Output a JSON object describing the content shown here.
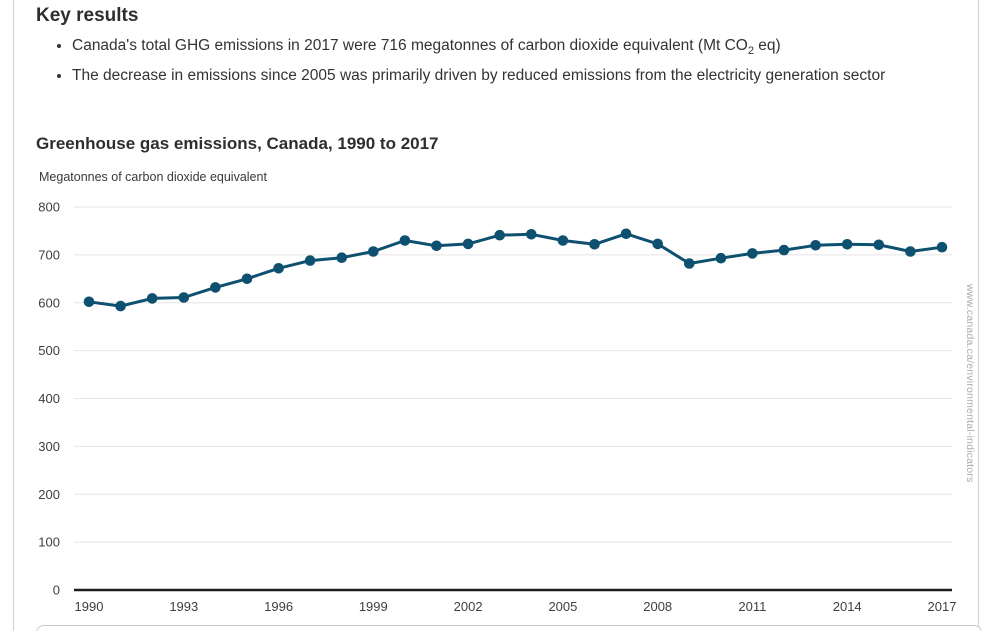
{
  "key_results": {
    "heading": "Key results",
    "bullets": [
      {
        "pre": "Canada's total GHG emissions in 2017 were 716 megatonnes of carbon dioxide equivalent (Mt CO",
        "sub": "2",
        "post": " eq)"
      },
      {
        "pre": "The decrease in emissions since 2005 was primarily driven by reduced emissions from the electricity generation sector",
        "sub": "",
        "post": ""
      }
    ]
  },
  "chart": {
    "title": "Greenhouse gas emissions, Canada, 1990 to 2017",
    "unit_label": "Megatonnes of carbon dioxide equivalent"
  },
  "watermark": "www.canada.ca/environmental-indicators",
  "chart_data": {
    "type": "line",
    "title": "Greenhouse gas emissions, Canada, 1990 to 2017",
    "xlabel": "",
    "ylabel": "Megatonnes of carbon dioxide equivalent",
    "ylim": [
      0,
      800
    ],
    "ytick_step": 100,
    "xtick_step": 3,
    "grid": true,
    "legend": "none",
    "line_color": "#0e506f",
    "x": [
      1990,
      1991,
      1992,
      1993,
      1994,
      1995,
      1996,
      1997,
      1998,
      1999,
      2000,
      2001,
      2002,
      2003,
      2004,
      2005,
      2006,
      2007,
      2008,
      2009,
      2010,
      2011,
      2012,
      2013,
      2014,
      2015,
      2016,
      2017
    ],
    "values": [
      602,
      593,
      609,
      611,
      632,
      650,
      672,
      688,
      694,
      707,
      730,
      719,
      723,
      741,
      743,
      730,
      722,
      744,
      723,
      682,
      693,
      703,
      710,
      720,
      722,
      721,
      707,
      716
    ]
  }
}
